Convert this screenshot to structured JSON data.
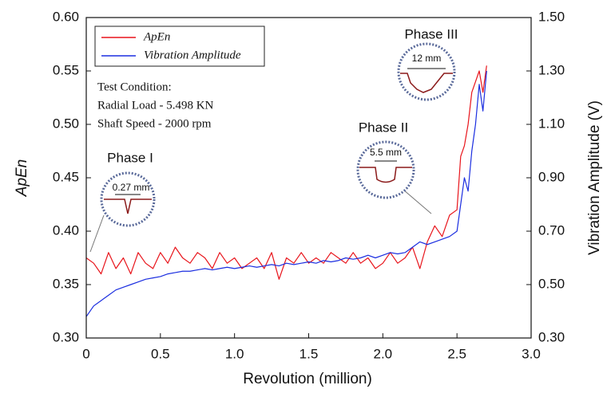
{
  "chart_data": {
    "type": "line",
    "x_label": "Revolution (million)",
    "y_label": "ApEn",
    "y2_label": "Vibration Amplitude  (V)",
    "x": [
      0,
      0.05,
      0.1,
      0.15,
      0.2,
      0.25,
      0.3,
      0.35,
      0.4,
      0.45,
      0.5,
      0.55,
      0.6,
      0.65,
      0.7,
      0.75,
      0.8,
      0.85,
      0.9,
      0.95,
      1.0,
      1.05,
      1.1,
      1.15,
      1.2,
      1.25,
      1.3,
      1.35,
      1.4,
      1.45,
      1.5,
      1.55,
      1.6,
      1.65,
      1.7,
      1.75,
      1.8,
      1.85,
      1.9,
      1.95,
      2.0,
      2.05,
      2.1,
      2.15,
      2.2,
      2.25,
      2.3,
      2.35,
      2.4,
      2.45,
      2.5,
      2.525,
      2.55,
      2.575,
      2.6,
      2.625,
      2.65,
      2.675,
      2.7
    ],
    "series": [
      {
        "name": "ApEn",
        "color": "#e8141b",
        "axis": "y",
        "values": [
          0.375,
          0.37,
          0.36,
          0.38,
          0.365,
          0.375,
          0.36,
          0.38,
          0.37,
          0.365,
          0.38,
          0.37,
          0.385,
          0.375,
          0.37,
          0.38,
          0.375,
          0.365,
          0.38,
          0.37,
          0.375,
          0.365,
          0.37,
          0.375,
          0.365,
          0.38,
          0.355,
          0.375,
          0.37,
          0.38,
          0.37,
          0.375,
          0.37,
          0.38,
          0.375,
          0.37,
          0.38,
          0.37,
          0.375,
          0.365,
          0.37,
          0.38,
          0.37,
          0.375,
          0.385,
          0.365,
          0.39,
          0.405,
          0.395,
          0.415,
          0.42,
          0.47,
          0.48,
          0.5,
          0.53,
          0.54,
          0.55,
          0.53,
          0.555
        ]
      },
      {
        "name": "Vibration Amplitude",
        "color": "#1b2ee0",
        "axis": "y2",
        "values": [
          0.38,
          0.42,
          0.44,
          0.46,
          0.48,
          0.49,
          0.5,
          0.51,
          0.52,
          0.525,
          0.53,
          0.54,
          0.545,
          0.55,
          0.55,
          0.555,
          0.56,
          0.555,
          0.56,
          0.565,
          0.56,
          0.565,
          0.57,
          0.565,
          0.57,
          0.575,
          0.57,
          0.58,
          0.575,
          0.58,
          0.585,
          0.58,
          0.59,
          0.585,
          0.59,
          0.6,
          0.595,
          0.6,
          0.61,
          0.6,
          0.61,
          0.62,
          0.615,
          0.62,
          0.64,
          0.66,
          0.65,
          0.66,
          0.67,
          0.68,
          0.7,
          0.8,
          0.9,
          0.85,
          1.0,
          1.1,
          1.25,
          1.15,
          1.3
        ]
      }
    ],
    "xlim": [
      0,
      3
    ],
    "xticks": [
      0,
      0.5,
      {
        "value": 1,
        "label": "1.0"
      },
      1.5,
      {
        "value": 2,
        "label": "2.0"
      },
      2.5,
      {
        "value": 3,
        "label": "3.0"
      }
    ],
    "ylim": [
      0.3,
      0.6
    ],
    "yticks": [
      {
        "value": 0.3,
        "label": "0.30"
      },
      0.35,
      {
        "value": 0.4,
        "label": "0.40"
      },
      0.45,
      {
        "value": 0.5,
        "label": "0.50"
      },
      0.55,
      {
        "value": 0.6,
        "label": "0.60"
      }
    ],
    "y2lim": [
      0.3,
      1.5
    ],
    "y2ticks": [
      {
        "value": 0.3,
        "label": "0.30"
      },
      {
        "value": 0.5,
        "label": "0.50"
      },
      {
        "value": 0.7,
        "label": "0.70"
      },
      {
        "value": 0.9,
        "label": "0.90"
      },
      {
        "value": 1.1,
        "label": "1.10"
      },
      {
        "value": 1.3,
        "label": "1.30"
      },
      {
        "value": 1.5,
        "label": "1.50"
      }
    ],
    "legend": "upper left",
    "test_condition": [
      "Test Condition:",
      "Radial Load - 5.498 KN",
      "Shaft Speed - 2000 rpm"
    ],
    "phases": [
      {
        "label": "Phase I",
        "defect": "0.27 mm"
      },
      {
        "label": "Phase II",
        "defect": "5.5 mm"
      },
      {
        "label": "Phase III",
        "defect": "12 mm"
      }
    ]
  }
}
